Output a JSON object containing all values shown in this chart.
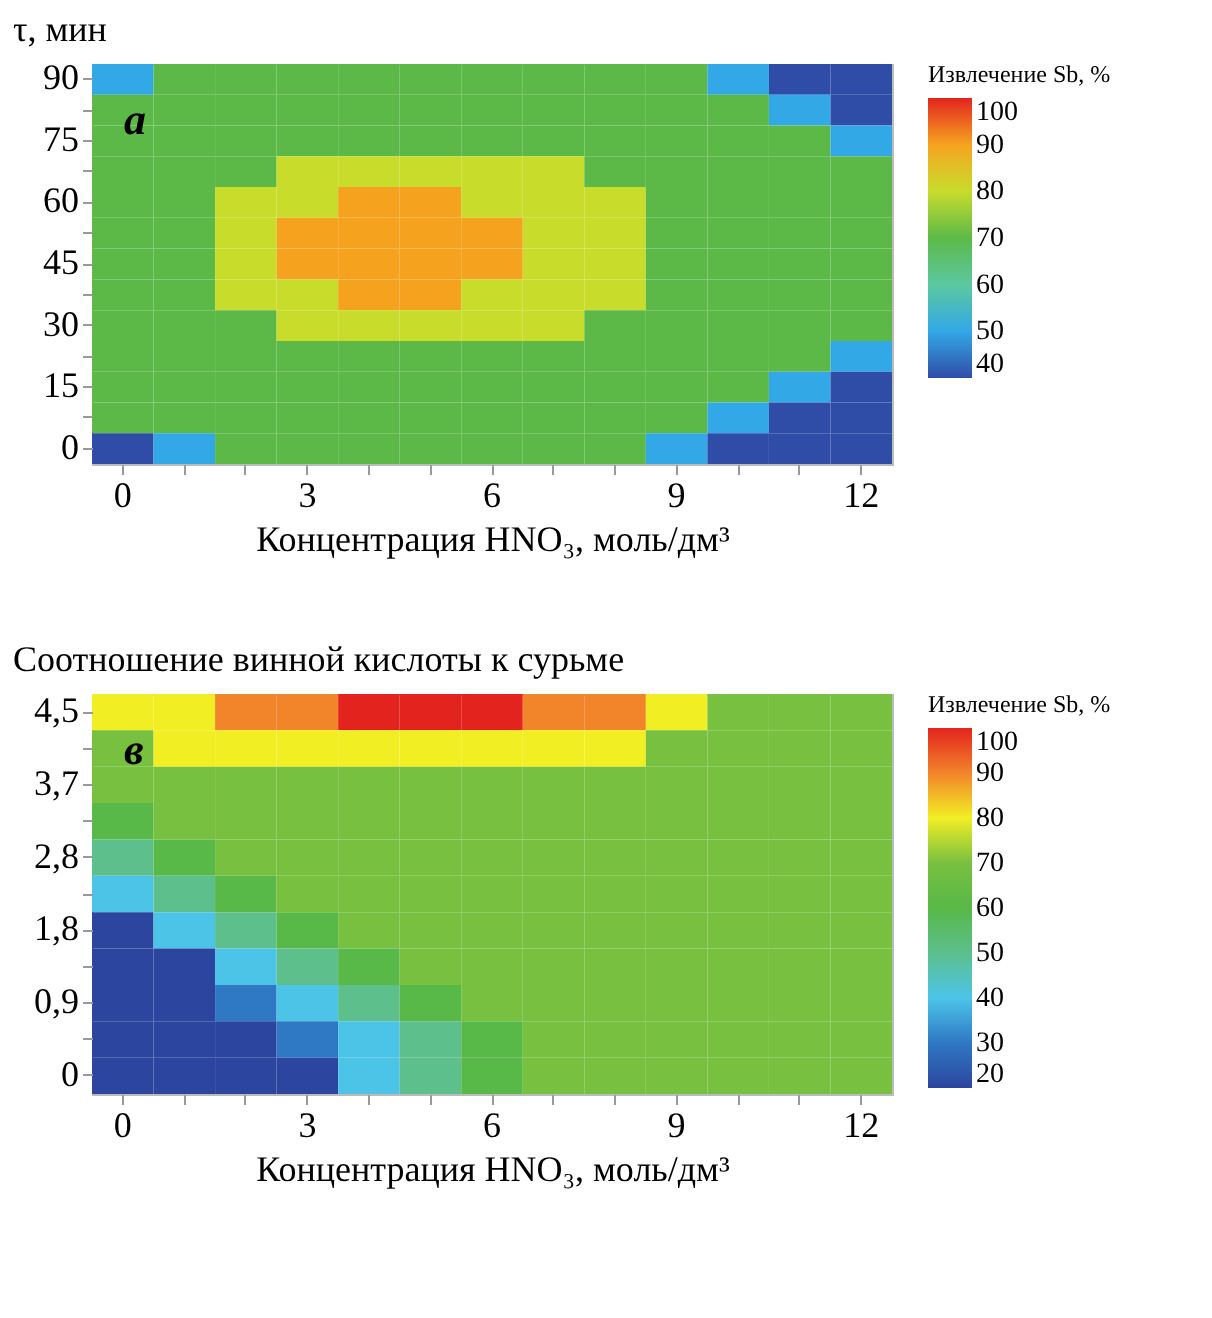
{
  "chart_data": [
    {
      "type": "heatmap",
      "ylabel": "τ, мин",
      "xlabel": "Концентрация HNO₃, моль/дм³",
      "legend_title": "Извлечение Sb, %",
      "clim": [
        40,
        100
      ],
      "grid": false,
      "annotations": [
        "а"
      ],
      "categories": [
        "0",
        null,
        null,
        "3",
        null,
        null,
        "6",
        null,
        null,
        "9",
        null,
        null,
        "12"
      ],
      "y_categories": [
        "90",
        null,
        "75",
        null,
        "60",
        null,
        "45",
        null,
        "30",
        null,
        "15",
        null,
        "0"
      ],
      "cticks": [
        40,
        50,
        60,
        70,
        80,
        90,
        100
      ],
      "colors": [
        "#2f4da6",
        "#32a8e6",
        "#5cc8a0",
        "#5cb948",
        "#c8dc2c",
        "#f5a31f",
        "#e3241e"
      ],
      "cells": [
        [
          50,
          70,
          70,
          70,
          70,
          70,
          70,
          70,
          70,
          70,
          50,
          40,
          40
        ],
        [
          70,
          70,
          70,
          70,
          70,
          70,
          70,
          70,
          70,
          70,
          70,
          50,
          40
        ],
        [
          70,
          70,
          70,
          70,
          70,
          70,
          70,
          70,
          70,
          70,
          70,
          70,
          50
        ],
        [
          70,
          70,
          70,
          80,
          80,
          80,
          80,
          80,
          70,
          70,
          70,
          70,
          70
        ],
        [
          70,
          70,
          80,
          80,
          90,
          90,
          80,
          80,
          80,
          70,
          70,
          70,
          70
        ],
        [
          70,
          70,
          80,
          90,
          90,
          90,
          90,
          80,
          80,
          70,
          70,
          70,
          70
        ],
        [
          70,
          70,
          80,
          90,
          90,
          90,
          90,
          80,
          80,
          70,
          70,
          70,
          70
        ],
        [
          70,
          70,
          80,
          80,
          90,
          90,
          80,
          80,
          80,
          70,
          70,
          70,
          70
        ],
        [
          70,
          70,
          70,
          80,
          80,
          80,
          80,
          80,
          70,
          70,
          70,
          70,
          70
        ],
        [
          70,
          70,
          70,
          70,
          70,
          70,
          70,
          70,
          70,
          70,
          70,
          70,
          50
        ],
        [
          70,
          70,
          70,
          70,
          70,
          70,
          70,
          70,
          70,
          70,
          70,
          50,
          40
        ],
        [
          70,
          70,
          70,
          70,
          70,
          70,
          70,
          70,
          70,
          70,
          50,
          40,
          40
        ],
        [
          40,
          50,
          70,
          70,
          70,
          70,
          70,
          70,
          70,
          50,
          40,
          40,
          40
        ]
      ]
    },
    {
      "type": "heatmap",
      "ylabel": "Соотношение винной кислоты к сурьме",
      "xlabel": "Концентрация HNO₃, моль/дм³",
      "legend_title": "Извлечение Sb, %",
      "clim": [
        20,
        100
      ],
      "grid": false,
      "annotations": [
        "в"
      ],
      "categories": [
        "0",
        null,
        null,
        "3",
        null,
        null,
        "6",
        null,
        null,
        "9",
        null,
        null,
        "12"
      ],
      "y_categories": [
        "4,5",
        null,
        "3,7",
        null,
        "2,8",
        null,
        "1,8",
        null,
        "0,9",
        null,
        "0"
      ],
      "cticks": [
        20,
        30,
        40,
        50,
        60,
        70,
        80,
        90,
        100
      ],
      "colors": [
        "#2c459e",
        "#2f78c4",
        "#4cc4e8",
        "#5cbf8c",
        "#58b848",
        "#78c040",
        "#f2ee24",
        "#f2842a",
        "#e3241e"
      ],
      "cells": [
        [
          80,
          80,
          90,
          90,
          100,
          100,
          100,
          90,
          90,
          80,
          70,
          70,
          70
        ],
        [
          70,
          80,
          80,
          80,
          80,
          80,
          80,
          80,
          80,
          70,
          70,
          70,
          70
        ],
        [
          70,
          70,
          70,
          70,
          70,
          70,
          70,
          70,
          70,
          70,
          70,
          70,
          70
        ],
        [
          60,
          70,
          70,
          70,
          70,
          70,
          70,
          70,
          70,
          70,
          70,
          70,
          70
        ],
        [
          50,
          60,
          70,
          70,
          70,
          70,
          70,
          70,
          70,
          70,
          70,
          70,
          70
        ],
        [
          40,
          50,
          60,
          70,
          70,
          70,
          70,
          70,
          70,
          70,
          70,
          70,
          70
        ],
        [
          20,
          40,
          50,
          60,
          70,
          70,
          70,
          70,
          70,
          70,
          70,
          70,
          70
        ],
        [
          20,
          20,
          40,
          50,
          60,
          70,
          70,
          70,
          70,
          70,
          70,
          70,
          70
        ],
        [
          20,
          20,
          30,
          40,
          50,
          60,
          70,
          70,
          70,
          70,
          70,
          70,
          70
        ],
        [
          20,
          20,
          20,
          30,
          40,
          50,
          60,
          70,
          70,
          70,
          70,
          70,
          70
        ],
        [
          20,
          20,
          20,
          20,
          40,
          50,
          60,
          70,
          70,
          70,
          70,
          70,
          70
        ]
      ]
    }
  ]
}
